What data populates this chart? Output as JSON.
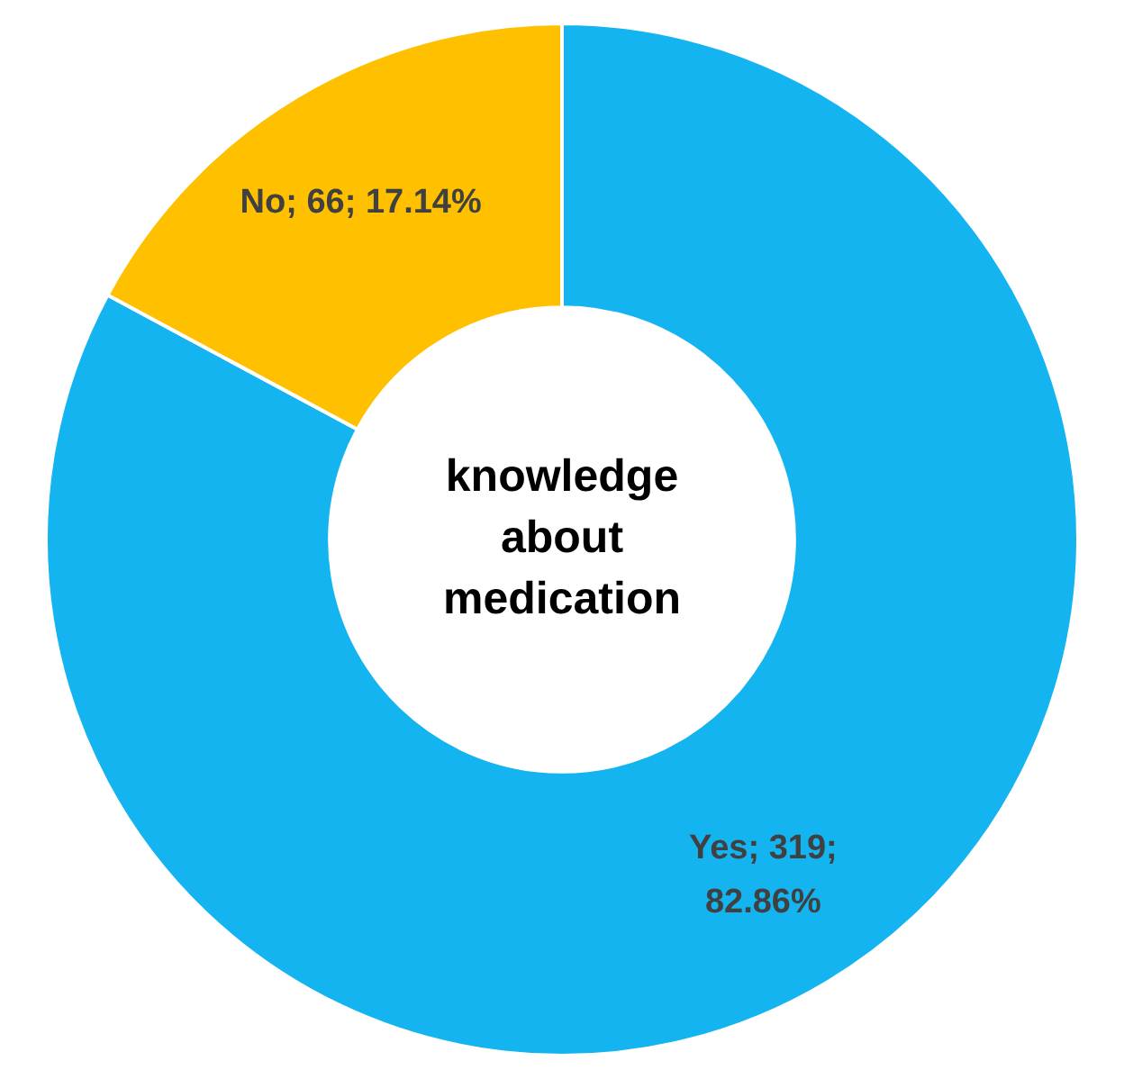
{
  "chart_data": {
    "type": "donut",
    "title": "knowledge about medication",
    "categories": [
      "Yes",
      "No"
    ],
    "values": [
      319,
      66
    ],
    "colors": [
      "#14b4f0",
      "#ffc000"
    ],
    "value_labels": [
      "319; 82.86%",
      "66; 17.14%"
    ],
    "legend": false
  }
}
